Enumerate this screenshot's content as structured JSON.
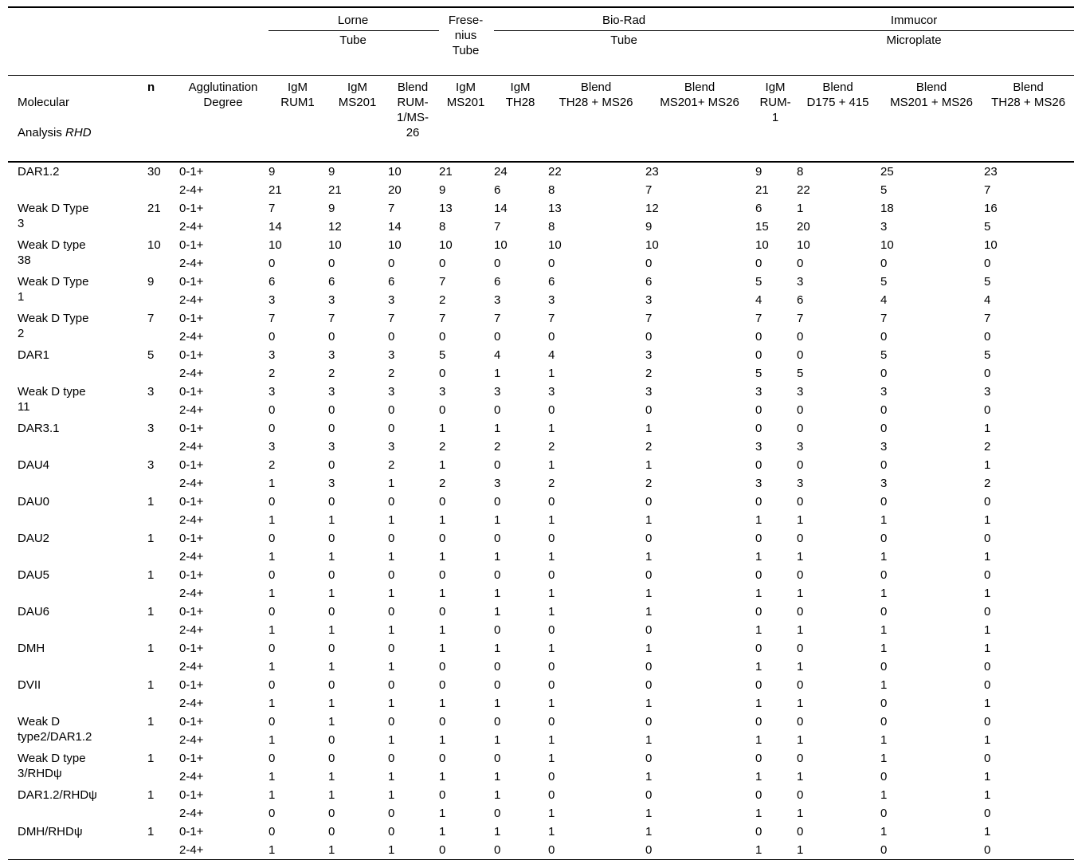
{
  "table": {
    "groups": {
      "lorne": {
        "label": "Lorne",
        "method": "Tube"
      },
      "fresenius": {
        "label": "Frese-\nnius\nTube"
      },
      "biorad": {
        "label": "Bio-Rad",
        "method": "Tube"
      },
      "immucor": {
        "label": "Immucor",
        "method": "Microplate"
      }
    },
    "columns": {
      "molecular_line1": "Molecular",
      "molecular_line2": "Analysis ",
      "molecular_rhd": "RHD",
      "n": "n",
      "degree": "Agglutination\nDegree"
    },
    "reagents": [
      "IgM\nRUM1",
      "IgM\nMS201",
      "Blend\nRUM-\n1/MS-\n26",
      "IgM\nMS201",
      "IgM\nTH28",
      "Blend\nTH28 + MS26",
      "Blend\nMS201+ MS26",
      "IgM\nRUM-\n1",
      "Blend\nD175 + 415",
      "Blend\nMS201 + MS26",
      "Blend\nTH28 + MS26"
    ],
    "degree_labels": [
      "0-1+",
      "2-4+"
    ],
    "rows": [
      {
        "name": "DAR1.2",
        "n": "30",
        "low": [
          9,
          9,
          10,
          21,
          24,
          22,
          23,
          9,
          8,
          25,
          23
        ],
        "high": [
          21,
          21,
          20,
          9,
          6,
          8,
          7,
          21,
          22,
          5,
          7
        ]
      },
      {
        "name": "Weak D Type\n3",
        "n": "21",
        "low": [
          7,
          9,
          7,
          13,
          14,
          13,
          12,
          6,
          1,
          18,
          16
        ],
        "high": [
          14,
          12,
          14,
          8,
          7,
          8,
          9,
          15,
          20,
          3,
          5
        ]
      },
      {
        "name": "Weak D type\n38",
        "n": "10",
        "low": [
          10,
          10,
          10,
          10,
          10,
          10,
          10,
          10,
          10,
          10,
          10
        ],
        "high": [
          0,
          0,
          0,
          0,
          0,
          0,
          0,
          0,
          0,
          0,
          0
        ]
      },
      {
        "name": "Weak D Type\n1",
        "n": "9",
        "low": [
          6,
          6,
          6,
          7,
          6,
          6,
          6,
          5,
          3,
          5,
          5
        ],
        "high": [
          3,
          3,
          3,
          2,
          3,
          3,
          3,
          4,
          6,
          4,
          4
        ]
      },
      {
        "name": "Weak D Type\n2",
        "n": "7",
        "low": [
          7,
          7,
          7,
          7,
          7,
          7,
          7,
          7,
          7,
          7,
          7
        ],
        "high": [
          0,
          0,
          0,
          0,
          0,
          0,
          0,
          0,
          0,
          0,
          0
        ]
      },
      {
        "name": "DAR1",
        "n": "5",
        "low": [
          3,
          3,
          3,
          5,
          4,
          4,
          3,
          0,
          0,
          5,
          5
        ],
        "high": [
          2,
          2,
          2,
          0,
          1,
          1,
          2,
          5,
          5,
          0,
          0
        ]
      },
      {
        "name": "Weak D type\n11",
        "n": "3",
        "low": [
          3,
          3,
          3,
          3,
          3,
          3,
          3,
          3,
          3,
          3,
          3
        ],
        "high": [
          0,
          0,
          0,
          0,
          0,
          0,
          0,
          0,
          0,
          0,
          0
        ]
      },
      {
        "name": "DAR3.1",
        "n": "3",
        "low": [
          0,
          0,
          0,
          1,
          1,
          1,
          1,
          0,
          0,
          0,
          1
        ],
        "high": [
          3,
          3,
          3,
          2,
          2,
          2,
          2,
          3,
          3,
          3,
          2
        ]
      },
      {
        "name": "DAU4",
        "n": "3",
        "low": [
          2,
          0,
          2,
          1,
          0,
          1,
          1,
          0,
          0,
          0,
          1
        ],
        "high": [
          1,
          3,
          1,
          2,
          3,
          2,
          2,
          3,
          3,
          3,
          2
        ]
      },
      {
        "name": "DAU0",
        "n": "1",
        "low": [
          0,
          0,
          0,
          0,
          0,
          0,
          0,
          0,
          0,
          0,
          0
        ],
        "high": [
          1,
          1,
          1,
          1,
          1,
          1,
          1,
          1,
          1,
          1,
          1
        ]
      },
      {
        "name": "DAU2",
        "n": "1",
        "low": [
          0,
          0,
          0,
          0,
          0,
          0,
          0,
          0,
          0,
          0,
          0
        ],
        "high": [
          1,
          1,
          1,
          1,
          1,
          1,
          1,
          1,
          1,
          1,
          1
        ]
      },
      {
        "name": "DAU5",
        "n": "1",
        "low": [
          0,
          0,
          0,
          0,
          0,
          0,
          0,
          0,
          0,
          0,
          0
        ],
        "high": [
          1,
          1,
          1,
          1,
          1,
          1,
          1,
          1,
          1,
          1,
          1
        ]
      },
      {
        "name": "DAU6",
        "n": "1",
        "low": [
          0,
          0,
          0,
          0,
          1,
          1,
          1,
          0,
          0,
          0,
          0
        ],
        "high": [
          1,
          1,
          1,
          1,
          0,
          0,
          0,
          1,
          1,
          1,
          1
        ]
      },
      {
        "name": "DMH",
        "n": "1",
        "low": [
          0,
          0,
          0,
          1,
          1,
          1,
          1,
          0,
          0,
          1,
          1
        ],
        "high": [
          1,
          1,
          1,
          0,
          0,
          0,
          0,
          1,
          1,
          0,
          0
        ]
      },
      {
        "name": "DVII",
        "n": "1",
        "low": [
          0,
          0,
          0,
          0,
          0,
          0,
          0,
          0,
          0,
          1,
          0
        ],
        "high": [
          1,
          1,
          1,
          1,
          1,
          1,
          1,
          1,
          1,
          0,
          1
        ]
      },
      {
        "name": "Weak D\ntype2/DAR1.2",
        "n": "1",
        "low": [
          0,
          1,
          0,
          0,
          0,
          0,
          0,
          0,
          0,
          0,
          0
        ],
        "high": [
          1,
          0,
          1,
          1,
          1,
          1,
          1,
          1,
          1,
          1,
          1
        ]
      },
      {
        "name": "Weak D type\n3/RHDψ",
        "n": "1",
        "low": [
          0,
          0,
          0,
          0,
          0,
          1,
          0,
          0,
          0,
          1,
          0
        ],
        "high": [
          1,
          1,
          1,
          1,
          1,
          0,
          1,
          1,
          1,
          0,
          1
        ]
      },
      {
        "name": "DAR1.2/RHDψ",
        "n": "1",
        "low": [
          1,
          1,
          1,
          0,
          1,
          0,
          0,
          0,
          0,
          1,
          1
        ],
        "high": [
          0,
          0,
          0,
          1,
          0,
          1,
          1,
          1,
          1,
          0,
          0
        ]
      },
      {
        "name": "DMH/RHDψ",
        "n": "1",
        "low": [
          0,
          0,
          0,
          1,
          1,
          1,
          1,
          0,
          0,
          1,
          1
        ],
        "high": [
          1,
          1,
          1,
          0,
          0,
          0,
          0,
          1,
          1,
          0,
          0
        ]
      }
    ]
  }
}
